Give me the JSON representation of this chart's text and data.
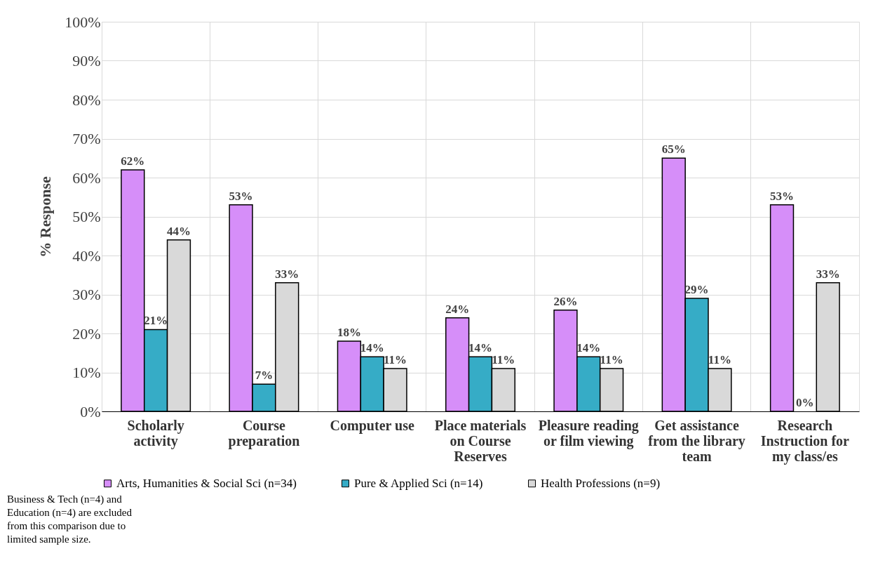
{
  "chart_data": {
    "type": "bar",
    "ylabel": "% Response",
    "categories": [
      "Scholarly activity",
      "Course preparation",
      "Computer use",
      "Place materials on Course Reserves",
      "Pleasure reading or film viewing",
      "Get assistance from the library team",
      "Research Instruction for my class/es"
    ],
    "series": [
      {
        "name": "Arts, Humanities & Social Sci (n=34)",
        "color": "#d68ef9",
        "values": [
          62,
          53,
          18,
          24,
          26,
          65,
          53
        ],
        "value_labels": [
          "62%",
          "53%",
          "18%",
          "24%",
          "26%",
          "65%",
          "53%"
        ]
      },
      {
        "name": "Pure & Applied Sci (n=14)",
        "color": "#36acc6",
        "values": [
          21,
          7,
          14,
          14,
          14,
          29,
          0
        ],
        "value_labels": [
          "21%",
          "7%",
          "14%",
          "14%",
          "14%",
          "29%",
          "0%"
        ]
      },
      {
        "name": "Health Professions (n=9)",
        "color": "#d9d9d9",
        "values": [
          44,
          33,
          11,
          11,
          11,
          11,
          33
        ],
        "value_labels": [
          "44%",
          "33%",
          "11%",
          "11%",
          "11%",
          "11%",
          "33%"
        ]
      }
    ],
    "ylim": [
      0,
      100
    ],
    "yticks": [
      {
        "value": 0,
        "label": "0%"
      },
      {
        "value": 10,
        "label": "10%"
      },
      {
        "value": 20,
        "label": "20%"
      },
      {
        "value": 30,
        "label": "30%"
      },
      {
        "value": 40,
        "label": "40%"
      },
      {
        "value": 50,
        "label": "50%"
      },
      {
        "value": 60,
        "label": "60%"
      },
      {
        "value": 70,
        "label": "70%"
      },
      {
        "value": 80,
        "label": "80%"
      },
      {
        "value": 90,
        "label": "90%"
      },
      {
        "value": 100,
        "label": "100%"
      }
    ],
    "grid": true,
    "legend": "bottom",
    "annotations": [
      "Business & Tech (n=4) and Education (n=4) are excluded from this comparison due to limited sample size."
    ]
  }
}
